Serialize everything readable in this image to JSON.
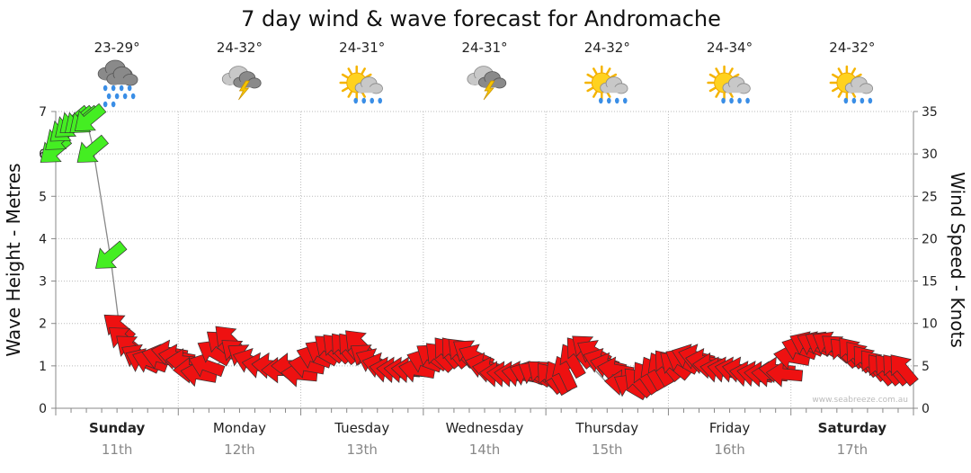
{
  "chart_data": {
    "type": "line",
    "title": "7 day wind & wave forecast for Andromache",
    "ylabel_left": "Wave Height - Metres",
    "ylabel_right": "Wind Speed - Knots",
    "ylim_left": [
      0,
      7
    ],
    "ylim_right": [
      0,
      35
    ],
    "yticks_left": [
      "0",
      "1",
      "2",
      "3",
      "4",
      "5",
      "6",
      "7"
    ],
    "yticks_right": [
      "0",
      "5",
      "10",
      "15",
      "20",
      "25",
      "30",
      "35"
    ],
    "grid": true,
    "watermark": "www.seabreeze.com.au",
    "days": [
      {
        "name": "Sunday",
        "date": "11th",
        "bold": true,
        "temp": "23-29°",
        "weather": "rain-cloud-icon"
      },
      {
        "name": "Monday",
        "date": "12th",
        "bold": false,
        "temp": "24-32°",
        "weather": "storm-cloud-icon"
      },
      {
        "name": "Tuesday",
        "date": "13th",
        "bold": false,
        "temp": "24-31°",
        "weather": "sun-showers-icon"
      },
      {
        "name": "Wednesday",
        "date": "14th",
        "bold": false,
        "temp": "24-31°",
        "weather": "storm-cloud-icon"
      },
      {
        "name": "Thursday",
        "date": "15th",
        "bold": false,
        "temp": "24-32°",
        "weather": "sun-showers-icon"
      },
      {
        "name": "Friday",
        "date": "16th",
        "bold": false,
        "temp": "24-34°",
        "weather": "sun-showers-icon"
      },
      {
        "name": "Saturday",
        "date": "17th",
        "bold": true,
        "temp": "24-32°",
        "weather": "sun-showers-icon"
      }
    ],
    "series": [
      {
        "name": "Wave Height",
        "color": "#888888",
        "x": [
          0.0,
          0.12,
          0.25,
          0.3,
          0.45,
          0.52,
          0.55,
          0.65,
          0.7,
          0.8,
          0.9,
          1.0,
          1.1,
          1.2,
          1.3,
          1.4,
          1.5,
          1.6,
          1.7,
          1.8,
          1.9,
          2.0,
          2.1,
          2.2,
          2.3,
          2.4,
          2.5,
          2.6,
          2.7,
          2.8,
          2.9,
          3.0,
          3.1,
          3.2,
          3.3,
          3.4,
          3.5,
          3.6,
          3.7,
          3.8,
          3.9,
          4.0,
          4.1,
          4.2,
          4.3,
          4.4,
          4.5,
          4.6,
          4.7,
          4.8,
          4.9,
          5.0,
          5.1,
          5.2,
          5.3,
          5.4,
          5.5,
          5.6,
          5.7,
          5.8,
          5.9,
          6.0,
          6.1,
          6.2,
          6.3,
          6.4,
          6.5,
          6.6,
          6.7,
          6.8,
          6.9
        ],
        "values": [
          6.4,
          6.8,
          6.8,
          6.2,
          3.5,
          1.9,
          1.7,
          1.4,
          1.2,
          1.1,
          1.1,
          1.2,
          1.0,
          0.9,
          1.0,
          1.2,
          1.3,
          1.1,
          1.0,
          1.0,
          1.0,
          0.9,
          1.1,
          1.3,
          1.4,
          1.4,
          1.2,
          1.0,
          0.9,
          0.8,
          0.8,
          0.9,
          1.1,
          1.2,
          1.2,
          1.1,
          1.0,
          0.8,
          0.8,
          0.8,
          0.8,
          0.7,
          0.9,
          1.1,
          1.1,
          0.9,
          0.6,
          0.5,
          0.6,
          0.8,
          1.0,
          1.0,
          1.1,
          1.2,
          1.1,
          1.0,
          0.9,
          0.8,
          0.7,
          0.7,
          0.8,
          1.2,
          1.3,
          1.3,
          1.3,
          1.3,
          1.3,
          1.1,
          1.0,
          0.9,
          0.9
        ]
      },
      {
        "name": "Wind Speed",
        "x": [
          0.0,
          0.04,
          0.08,
          0.12,
          0.16,
          0.2,
          0.24,
          0.28,
          0.3,
          0.45,
          0.52,
          0.56,
          0.62,
          0.68,
          0.72,
          0.78,
          0.86,
          0.94,
          1.0,
          1.06,
          1.12,
          1.18,
          1.24,
          1.3,
          1.36,
          1.42,
          1.48,
          1.54,
          1.6,
          1.68,
          1.76,
          1.84,
          1.92,
          2.0,
          2.06,
          2.12,
          2.18,
          2.24,
          2.3,
          2.36,
          2.42,
          2.48,
          2.54,
          2.6,
          2.66,
          2.72,
          2.78,
          2.84,
          2.9,
          2.96,
          3.02,
          3.08,
          3.14,
          3.2,
          3.26,
          3.32,
          3.38,
          3.44,
          3.5,
          3.56,
          3.62,
          3.68,
          3.74,
          3.8,
          3.86,
          3.92,
          3.98,
          4.04,
          4.1,
          4.16,
          4.22,
          4.28,
          4.34,
          4.4,
          4.46,
          4.52,
          4.58,
          4.64,
          4.7,
          4.76,
          4.82,
          4.88,
          4.94,
          5.0,
          5.06,
          5.12,
          5.18,
          5.24,
          5.3,
          5.36,
          5.42,
          5.48,
          5.54,
          5.6,
          5.66,
          5.72,
          5.78,
          5.84,
          5.9,
          5.96,
          6.02,
          6.08,
          6.14,
          6.2,
          6.26,
          6.32,
          6.38,
          6.44,
          6.5,
          6.56,
          6.62,
          6.68,
          6.74,
          6.8,
          6.86,
          6.92
        ],
        "values": [
          30.5,
          32.0,
          33.0,
          33.5,
          34.0,
          34.0,
          34.0,
          34.2,
          30.5,
          18.0,
          9.5,
          8.0,
          7.0,
          6.0,
          5.5,
          5.5,
          6.0,
          6.5,
          6.0,
          5.5,
          4.5,
          4.0,
          5.0,
          6.5,
          7.5,
          8.0,
          6.5,
          6.0,
          5.5,
          5.0,
          5.0,
          4.5,
          5.0,
          4.0,
          5.0,
          6.0,
          6.5,
          7.0,
          7.0,
          7.0,
          7.0,
          7.5,
          6.0,
          5.5,
          5.0,
          4.5,
          4.5,
          4.5,
          4.5,
          4.5,
          5.5,
          6.0,
          6.0,
          6.5,
          6.5,
          6.5,
          6.5,
          6.0,
          5.0,
          4.5,
          4.0,
          4.0,
          4.0,
          4.0,
          4.0,
          4.0,
          4.0,
          3.5,
          3.5,
          4.0,
          5.5,
          6.5,
          7.0,
          6.5,
          5.5,
          5.0,
          4.5,
          3.0,
          2.5,
          3.0,
          3.5,
          4.0,
          4.5,
          5.0,
          5.0,
          5.5,
          6.0,
          6.0,
          5.5,
          5.0,
          4.5,
          4.5,
          4.5,
          4.5,
          4.0,
          4.0,
          4.0,
          4.0,
          4.5,
          4.0,
          6.0,
          7.0,
          7.5,
          7.5,
          7.5,
          7.5,
          7.0,
          6.5,
          6.5,
          6.0,
          5.5,
          5.0,
          4.5,
          4.5,
          4.5,
          4.5
        ],
        "direction_deg": [
          50,
          50,
          50,
          50,
          50,
          50,
          50,
          50,
          50,
          50,
          130,
          130,
          130,
          120,
          115,
          110,
          105,
          100,
          100,
          95,
          90,
          100,
          110,
          120,
          130,
          135,
          130,
          125,
          110,
          100,
          95,
          90,
          90,
          95,
          100,
          110,
          120,
          130,
          135,
          140,
          140,
          135,
          125,
          115,
          105,
          100,
          95,
          95,
          95,
          100,
          110,
          125,
          135,
          140,
          140,
          135,
          125,
          115,
          105,
          100,
          95,
          95,
          95,
          100,
          110,
          120,
          130,
          140,
          150,
          155,
          150,
          140,
          130,
          120,
          110,
          105,
          100,
          95,
          120,
          135,
          145,
          150,
          150,
          140,
          130,
          120,
          110,
          105,
          100,
          95,
          100,
          100,
          100,
          100,
          100,
          100,
          95,
          95,
          95,
          95,
          100,
          110,
          115,
          115,
          120,
          120,
          130,
          135,
          140,
          140,
          140,
          140,
          140,
          140,
          140,
          140
        ],
        "color_strong": "#44ee22",
        "color_light": "#ee1111",
        "strong_threshold": 15
      }
    ]
  }
}
